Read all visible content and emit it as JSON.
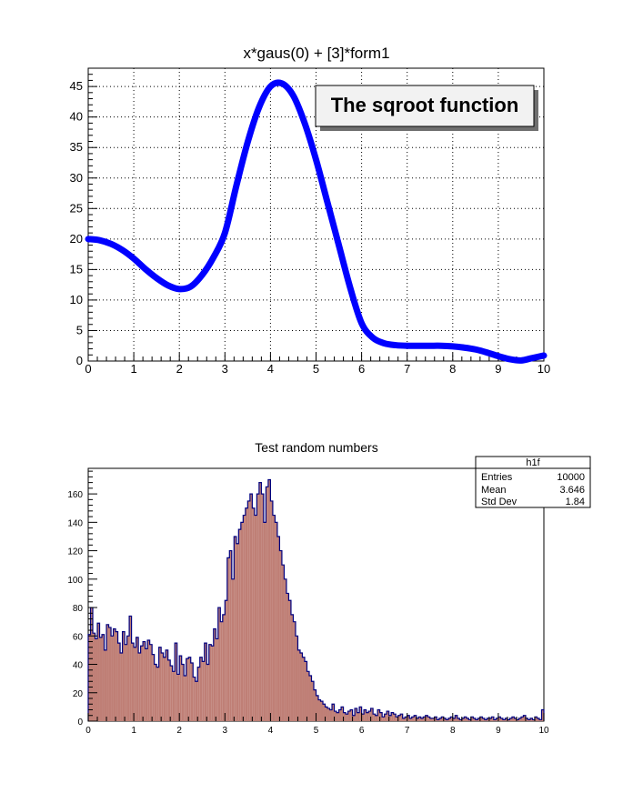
{
  "chart_data": [
    {
      "type": "line",
      "title": "x*gaus(0) + [3]*form1",
      "xlabel": "",
      "ylabel": "",
      "xlim": [
        0,
        10
      ],
      "ylim": [
        0,
        48
      ],
      "xticks": [
        0,
        1,
        2,
        3,
        4,
        5,
        6,
        7,
        8,
        9,
        10
      ],
      "yticks": [
        0,
        5,
        10,
        15,
        20,
        25,
        30,
        35,
        40,
        45
      ],
      "grid": true,
      "line_color": "#0000ff",
      "annotation": "The sqroot function",
      "series": [
        {
          "x": [
            0,
            0.25,
            0.5,
            0.75,
            1,
            1.25,
            1.5,
            1.75,
            2,
            2.25,
            2.5,
            2.75,
            3,
            3.25,
            3.5,
            3.75,
            4,
            4.25,
            4.5,
            4.75,
            5,
            5.25,
            5.5,
            5.75,
            6,
            6.25,
            6.5,
            6.75,
            7,
            7.25,
            7.5,
            7.75,
            8,
            8.25,
            8.5,
            8.75,
            9,
            9.25,
            9.5,
            9.75,
            10
          ],
          "y": [
            20,
            19.8,
            19.2,
            18.2,
            16.8,
            15.1,
            13.6,
            12.4,
            11.8,
            12.2,
            14.1,
            17,
            21,
            28.7,
            35.9,
            41.6,
            45,
            45.5,
            43.5,
            39,
            33,
            26,
            19,
            12,
            6.2,
            3.8,
            2.9,
            2.6,
            2.5,
            2.5,
            2.5,
            2.5,
            2.4,
            2.2,
            1.9,
            1.4,
            0.8,
            0.3,
            0.1,
            0.5,
            0.9
          ]
        }
      ]
    },
    {
      "type": "bar",
      "title": "Test random numbers",
      "xlabel": "",
      "ylabel": "",
      "xlim": [
        0,
        10
      ],
      "ylim": [
        0,
        178
      ],
      "xticks": [
        0,
        1,
        2,
        3,
        4,
        5,
        6,
        7,
        8,
        9,
        10
      ],
      "yticks": [
        0,
        20,
        40,
        60,
        80,
        100,
        120,
        140,
        160
      ],
      "fill_color": "#bf7f76",
      "edge_color": "#00007f",
      "bin_range": [
        0,
        10
      ],
      "values": [
        61,
        80,
        62,
        58,
        69,
        59,
        61,
        50,
        68,
        66,
        60,
        65,
        63,
        55,
        48,
        63,
        54,
        60,
        74,
        55,
        52,
        59,
        48,
        53,
        56,
        51,
        57,
        54,
        47,
        40,
        38,
        52,
        48,
        45,
        50,
        43,
        39,
        35,
        55,
        33,
        46,
        40,
        32,
        44,
        45,
        41,
        31,
        28,
        38,
        45,
        42,
        55,
        40,
        54,
        53,
        65,
        58,
        80,
        70,
        75,
        85,
        115,
        120,
        100,
        130,
        125,
        135,
        140,
        145,
        150,
        155,
        160,
        150,
        145,
        160,
        168,
        160,
        140,
        165,
        170,
        155,
        145,
        140,
        130,
        120,
        110,
        100,
        90,
        85,
        75,
        70,
        60,
        50,
        48,
        45,
        42,
        35,
        32,
        28,
        22,
        18,
        15,
        14,
        12,
        10,
        9,
        8,
        12,
        7,
        6,
        8,
        10,
        6,
        5,
        7,
        8,
        4,
        9,
        6,
        10,
        5,
        8,
        6,
        7,
        9,
        5,
        4,
        8,
        6,
        3,
        5,
        7,
        4,
        6,
        5,
        3,
        4,
        5,
        2,
        3,
        4,
        2,
        3,
        4,
        2,
        3,
        2,
        3,
        4,
        3,
        2,
        2,
        3,
        1,
        2,
        3,
        2,
        1,
        2,
        3,
        2,
        4,
        2,
        1,
        2,
        3,
        2,
        1,
        3,
        2,
        1,
        2,
        3,
        2,
        1,
        2,
        2,
        3,
        1,
        2,
        3,
        2,
        1,
        2,
        1,
        2,
        3,
        2,
        1,
        2,
        3,
        4,
        2,
        1,
        2,
        1,
        3,
        2,
        1,
        8
      ],
      "stats_box": {
        "title": "h1f",
        "rows": [
          {
            "label": "Entries",
            "value": "10000"
          },
          {
            "label": "Mean",
            "value": "3.646"
          },
          {
            "label": "Std Dev",
            "value": "1.84"
          }
        ]
      }
    }
  ]
}
